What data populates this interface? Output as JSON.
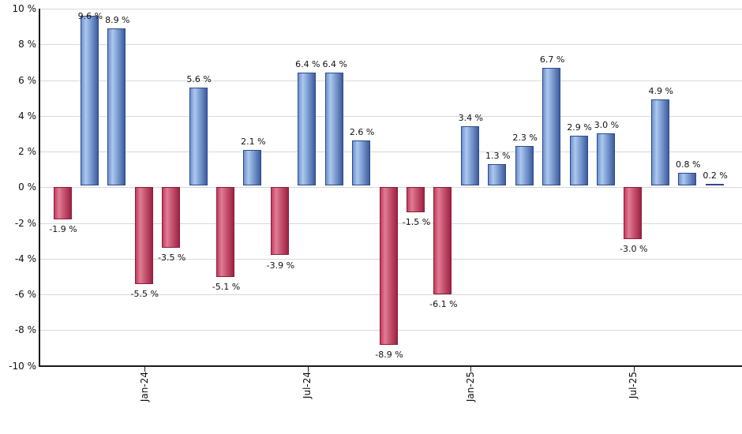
{
  "chart_data": {
    "type": "bar",
    "title": "",
    "xlabel": "",
    "ylabel": "",
    "ylim": [
      -10,
      10
    ],
    "grid": true,
    "legend": false,
    "y_tick_labels": [
      "10 %",
      "8 %",
      "6 %",
      "4 %",
      "2 %",
      "0 %",
      "-2 %",
      "-4 %",
      "-6 %",
      "-8 %",
      "-10 %"
    ],
    "y_tick_values": [
      10,
      8,
      6,
      4,
      2,
      0,
      -2,
      -4,
      -6,
      -8,
      -10
    ],
    "x_tick_labels": [
      {
        "label": "Jan-24",
        "bar_index": 3
      },
      {
        "label": "Jul-24",
        "bar_index": 9
      },
      {
        "label": "Jan-25",
        "bar_index": 15
      },
      {
        "label": "Jul-25",
        "bar_index": 21
      }
    ],
    "values": [
      -1.9,
      9.6,
      8.9,
      -5.5,
      -3.5,
      5.6,
      -5.1,
      2.1,
      -3.9,
      6.4,
      6.4,
      2.6,
      -8.9,
      -1.5,
      -6.1,
      3.4,
      1.3,
      2.3,
      6.7,
      2.9,
      3.0,
      -3.0,
      4.9,
      0.8,
      0.2
    ],
    "bar_labels": [
      "-1.9 %",
      "9.6 %",
      "8.9 %",
      "-5.5 %",
      "-3.5 %",
      "5.6 %",
      "-5.1 %",
      "2.1 %",
      "-3.9 %",
      "6.4 %",
      "6.4 %",
      "2.6 %",
      "-8.9 %",
      "-1.5 %",
      "-6.1 %",
      "3.4 %",
      "1.3 %",
      "2.3 %",
      "6.7 %",
      "2.9 %",
      "3.0 %",
      "-3.0 %",
      "4.9 %",
      "0.8 %",
      "0.2 %"
    ],
    "colors": {
      "positive_gradient": [
        "#6e90cc",
        "#adc8ee",
        "#7fa0d4",
        "#3f5c9c"
      ],
      "positive_border": "#2d4a8e",
      "negative_gradient": [
        "#c43a5e",
        "#e07d95",
        "#c85672",
        "#9e2244"
      ],
      "negative_border": "#8e1c3a",
      "gridline": "#d9d9d9",
      "axis": "#1a1a1a",
      "text": "#111111"
    }
  }
}
